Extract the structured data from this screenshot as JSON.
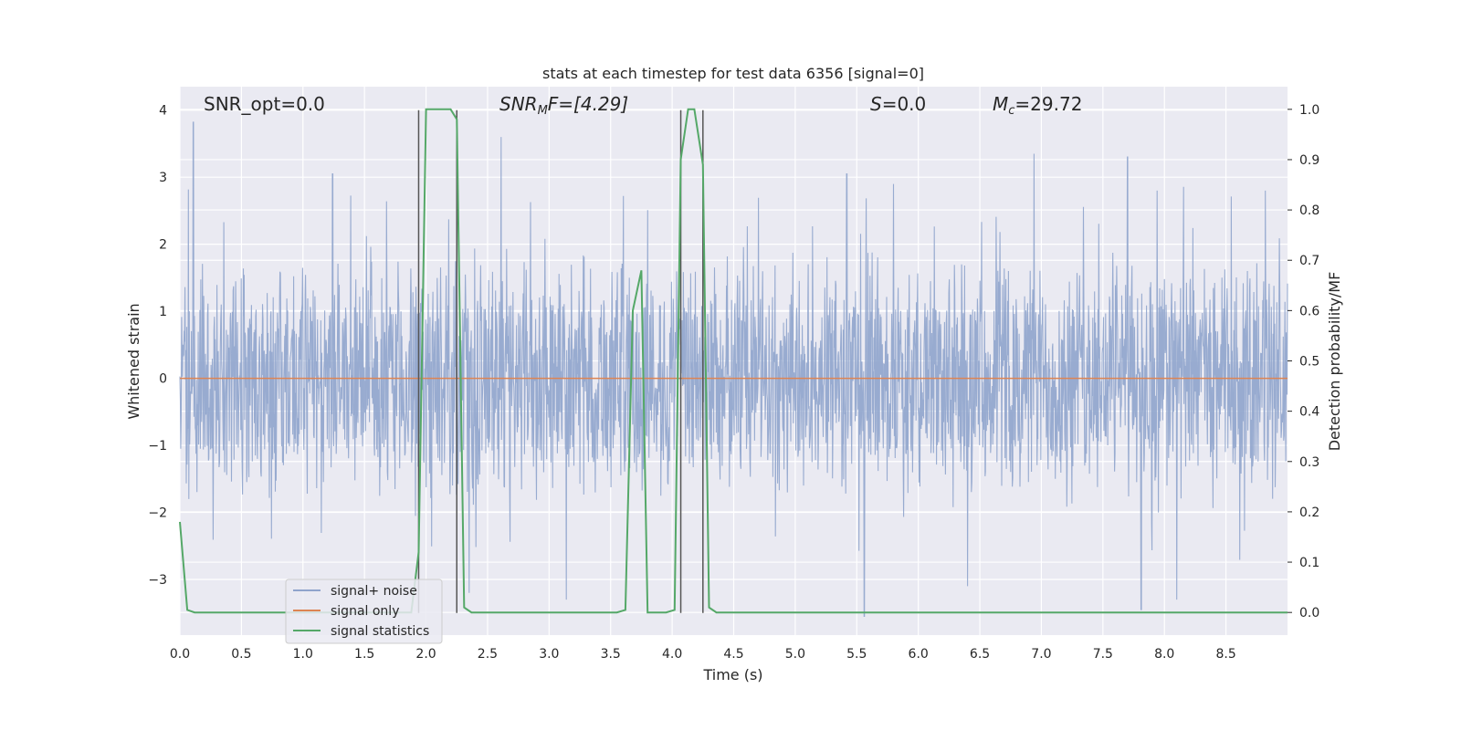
{
  "chart_data": {
    "type": "line",
    "title": "stats at each timestep for test data 6356 [signal=0]",
    "xlabel": "Time (s)",
    "ylabel_left": "Whitened strain",
    "ylabel_right": "Detection probability/MF",
    "xlim": [
      0.0,
      9.0
    ],
    "ylim_left": [
      -3.83,
      4.35
    ],
    "ylim_right": [
      -0.045,
      1.045
    ],
    "grid": true,
    "legend_position": "bottom-left",
    "x_ticks": [
      "0.0",
      "0.5",
      "1.0",
      "1.5",
      "2.0",
      "2.5",
      "3.0",
      "3.5",
      "4.0",
      "4.5",
      "5.0",
      "5.5",
      "6.0",
      "6.5",
      "7.0",
      "7.5",
      "8.0",
      "8.5"
    ],
    "y_ticks_left": [
      "−3",
      "−2",
      "−1",
      "0",
      "1",
      "2",
      "3",
      "4"
    ],
    "y_ticks_right": [
      "0.0",
      "0.1",
      "0.2",
      "0.3",
      "0.4",
      "0.5",
      "0.6",
      "0.7",
      "0.8",
      "0.9",
      "1.0"
    ],
    "annotations": {
      "snr_opt": "SNR_opt=0.0",
      "snr_mf_main": "SNR",
      "snr_mf_sub": "M",
      "snr_mf_rest": "F=[4.29]",
      "s_italic": "S",
      "s_rest": "=0.0",
      "mc_main": "M",
      "mc_sub": "c",
      "mc_rest": "=29.72"
    },
    "series": [
      {
        "name": "signal+ noise",
        "color": "#8fa4cc",
        "description_envelope": {
          "typical_max": 2.1,
          "typical_min": -1.6,
          "peaks": [
            [
              0.11,
              3.82
            ],
            [
              1.24,
              3.05
            ],
            [
              2.61,
              3.6
            ],
            [
              5.42,
              3.05
            ],
            [
              6.94,
              3.35
            ],
            [
              7.7,
              3.3
            ],
            [
              8.82,
              2.8
            ]
          ],
          "troughs": [
            [
              2.35,
              -3.2
            ],
            [
              3.14,
              -3.3
            ],
            [
              5.56,
              -3.55
            ],
            [
              6.4,
              -3.1
            ],
            [
              7.81,
              -3.45
            ],
            [
              8.1,
              -3.3
            ]
          ]
        }
      },
      {
        "name": "signal only",
        "color": "#dd8452",
        "x": [
          0.0,
          9.0
        ],
        "y": [
          0.0,
          0.0
        ]
      },
      {
        "name": "signal statistics",
        "color": "#55a868",
        "axis": "right",
        "x": [
          0.0,
          0.06,
          0.12,
          1.88,
          1.94,
          2.0,
          2.2,
          2.25,
          2.31,
          2.37,
          3.55,
          3.62,
          3.68,
          3.75,
          3.8,
          3.95,
          4.02,
          4.07,
          4.13,
          4.18,
          4.25,
          4.3,
          4.36,
          4.42,
          9.0
        ],
        "y": [
          0.18,
          0.005,
          0.0,
          0.0,
          0.12,
          1.0,
          1.0,
          0.98,
          0.01,
          0.0,
          0.0,
          0.005,
          0.6,
          0.68,
          0.0,
          0.0,
          0.005,
          0.9,
          1.0,
          1.0,
          0.89,
          0.01,
          0.0,
          0.0,
          0.0
        ]
      }
    ],
    "vertical_lines": {
      "color": "#555555",
      "x": [
        1.94,
        2.25,
        4.07,
        4.25
      ],
      "y_top": 4.0,
      "y_bottom": -3.5
    }
  }
}
